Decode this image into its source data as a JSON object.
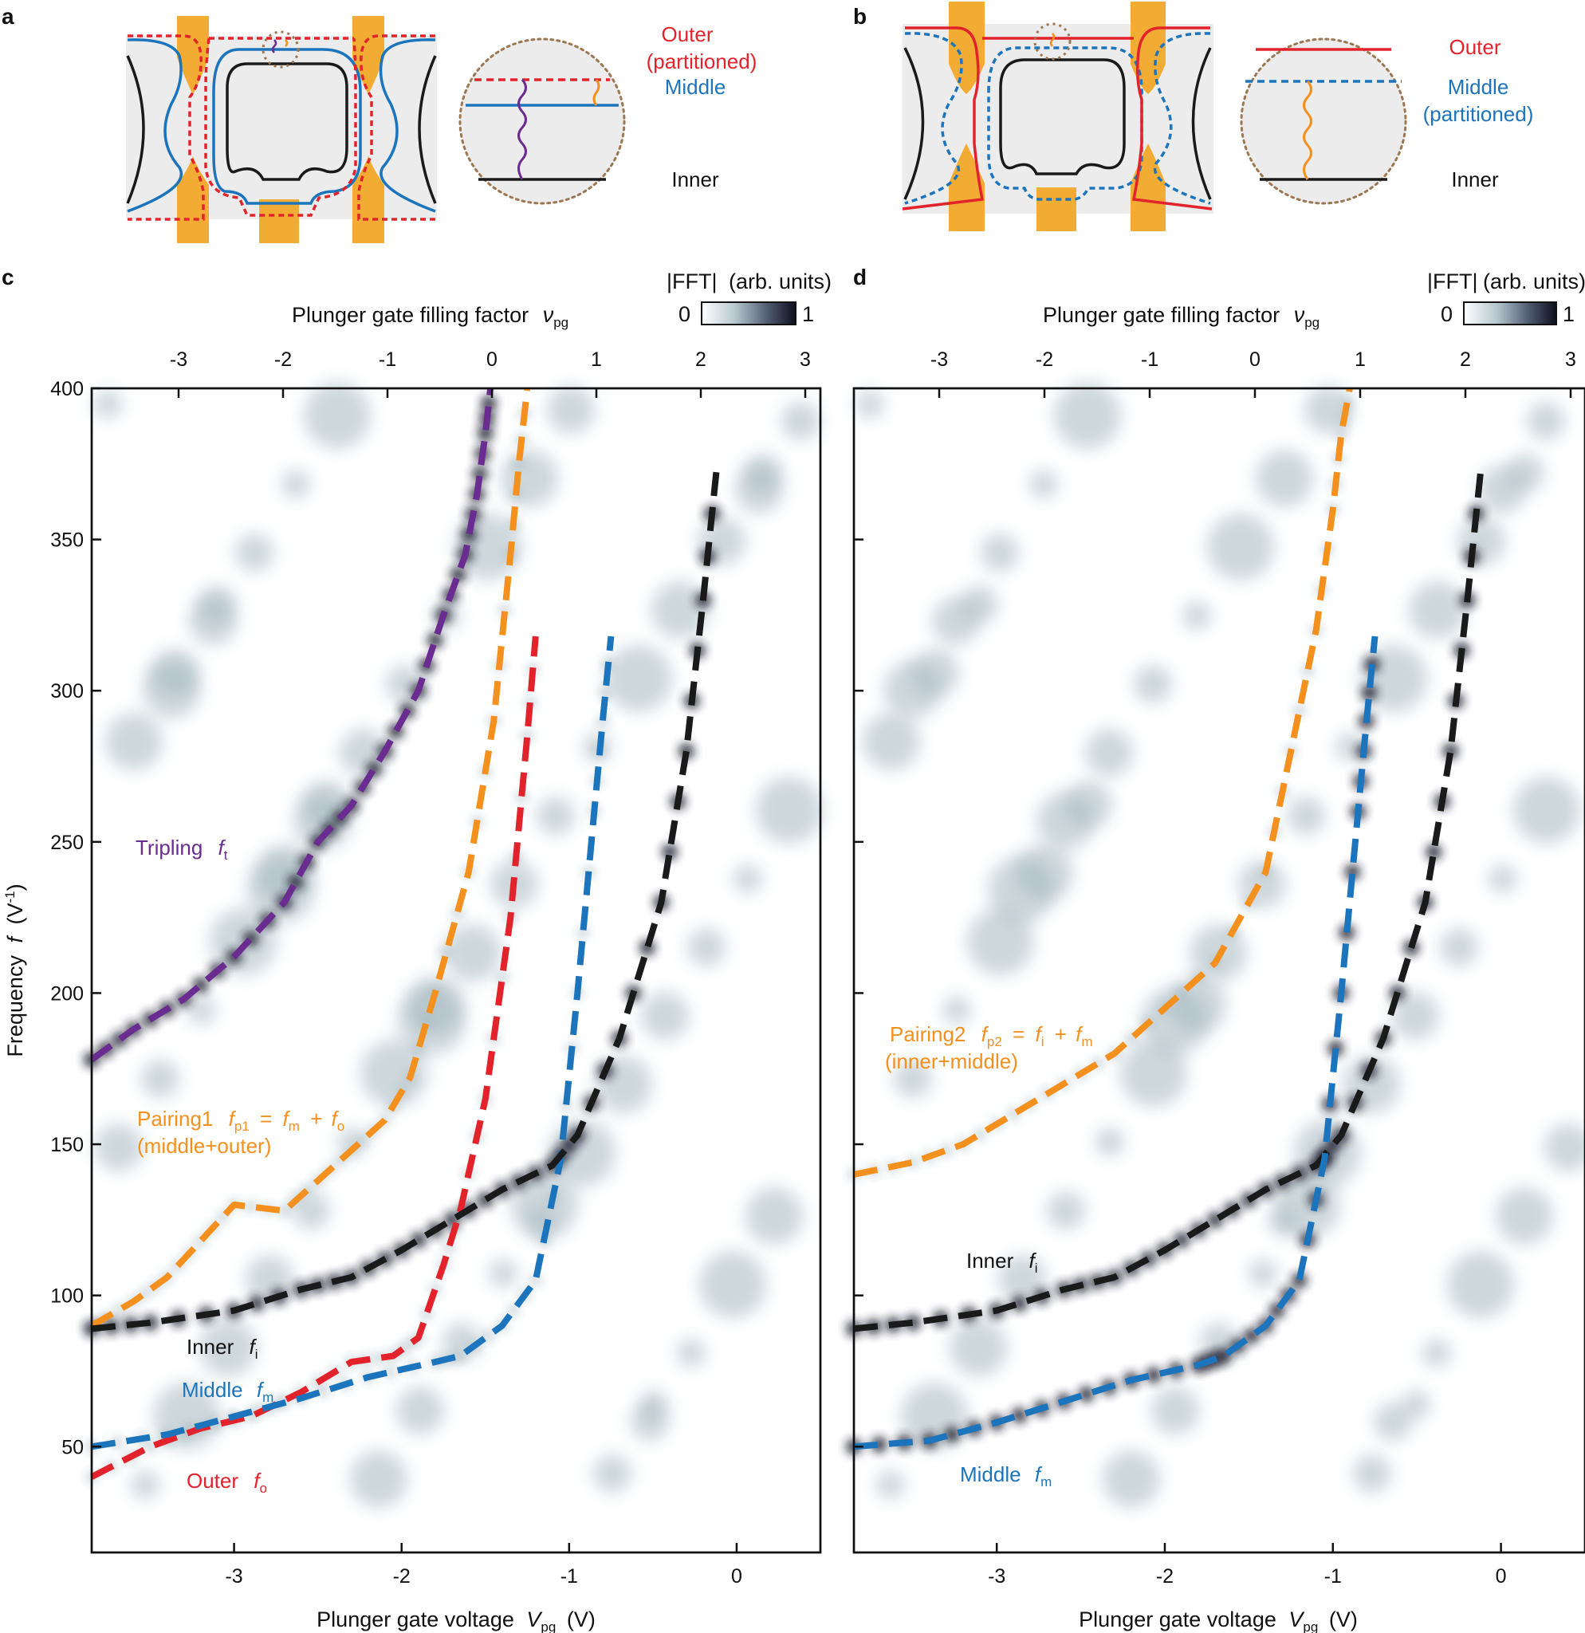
{
  "panels": {
    "a": {
      "label": "a",
      "loupe_labels": {
        "outer": "Outer",
        "outer_note": "(partitioned)",
        "middle": "Middle",
        "inner": "Inner"
      }
    },
    "b": {
      "label": "b",
      "loupe_labels": {
        "outer": "Outer",
        "middle": "Middle",
        "middle_note": "(partitioned)",
        "inner": "Inner"
      }
    },
    "c": {
      "label": "c"
    },
    "d": {
      "label": "d"
    }
  },
  "axes": {
    "x_bottom_label": "Plunger gate voltage",
    "x_bottom_symbol": "V",
    "x_bottom_sub": "pg",
    "x_bottom_unit": "(V)",
    "x_bottom_range": [
      -3.85,
      0.5
    ],
    "x_bottom_ticks": [
      "-3",
      "-2",
      "-1",
      "0"
    ],
    "x_top_label": "Plunger gate filling factor",
    "x_top_symbol": "ν",
    "x_top_sub": "pg",
    "x_top_ticks": [
      "-3",
      "-2",
      "-1",
      "0",
      "1",
      "2",
      "3"
    ],
    "y_label": "Frequency",
    "y_symbol": "f",
    "y_unit_open": "(V",
    "y_unit_exp": "-1",
    "y_unit_close": ")",
    "y_range": [
      15,
      400
    ],
    "y_ticks": [
      "50",
      "100",
      "150",
      "200",
      "250",
      "300",
      "350",
      "400"
    ]
  },
  "colorbar": {
    "label_abs": "|FFT|",
    "label_units": "(arb. units)",
    "min_label": "0",
    "max_label": "1",
    "color_low": "#ffffff",
    "color_high": "#0d0e1c"
  },
  "colors": {
    "outer": "#e3232c",
    "middle": "#1c75bc",
    "inner": "#1a1a1a",
    "pairing": "#f4901e",
    "tripling": "#6a2c91"
  },
  "annotations_c": {
    "tripling_label": "Tripling",
    "tripling_sym": "f",
    "tripling_sub": "t",
    "pairing_label": "Pairing1",
    "pairing_sym": "f",
    "pairing_sub": "p1",
    "pairing_eq": "=",
    "pairing_a": "f",
    "pairing_a_sub": "m",
    "pairing_plus": "+",
    "pairing_b": "f",
    "pairing_b_sub": "o",
    "pairing_desc": "(middle+outer)",
    "inner_label": "Inner",
    "inner_sym": "f",
    "inner_sub": "i",
    "middle_label": "Middle",
    "middle_sym": "f",
    "middle_sub": "m",
    "outer_label": "Outer",
    "outer_sym": "f",
    "outer_sub": "o"
  },
  "annotations_d": {
    "pairing_label": "Pairing2",
    "pairing_sym": "f",
    "pairing_sub": "p2",
    "pairing_eq": "=",
    "pairing_a": "f",
    "pairing_a_sub": "i",
    "pairing_plus": "+",
    "pairing_b": "f",
    "pairing_b_sub": "m",
    "pairing_desc": "(inner+middle)",
    "inner_label": "Inner",
    "inner_sym": "f",
    "inner_sub": "i",
    "middle_label": "Middle",
    "middle_sym": "f",
    "middle_sub": "m"
  },
  "chart_data": [
    {
      "panel": "c",
      "type": "heatmap",
      "title": "",
      "xlabel": "Plunger gate voltage V_pg (V)",
      "ylabel": "Frequency f (V^-1)",
      "xlim": [
        -3.85,
        0.5
      ],
      "ylim": [
        15,
        400
      ],
      "series": [
        {
          "name": "Tripling f_t",
          "color": "#6a2c91",
          "x": [
            -3.85,
            -3.6,
            -3.3,
            -3.0,
            -2.7,
            -2.5,
            -2.3,
            -2.1,
            -1.9,
            -1.75,
            -1.62,
            -1.55,
            -1.5,
            -1.47
          ],
          "y": [
            178,
            188,
            198,
            212,
            230,
            250,
            262,
            280,
            300,
            325,
            345,
            365,
            385,
            400
          ]
        },
        {
          "name": "Pairing1 f_p1",
          "color": "#f4901e",
          "x": [
            -3.85,
            -3.6,
            -3.4,
            -3.2,
            -3.0,
            -2.7,
            -2.5,
            -2.3,
            -2.1,
            -1.95,
            -1.8,
            -1.6,
            -1.45,
            -1.35,
            -1.3,
            -1.25
          ],
          "y": [
            90,
            98,
            106,
            118,
            130,
            128,
            138,
            148,
            158,
            172,
            200,
            240,
            290,
            345,
            375,
            400
          ]
        },
        {
          "name": "Outer f_o",
          "color": "#e3232c",
          "x": [
            -3.85,
            -3.5,
            -3.2,
            -2.9,
            -2.6,
            -2.3,
            -2.05,
            -1.9,
            -1.75,
            -1.65,
            -1.5,
            -1.35,
            -1.25,
            -1.2
          ],
          "y": [
            40,
            50,
            56,
            60,
            68,
            78,
            80,
            86,
            110,
            128,
            165,
            225,
            285,
            318
          ]
        },
        {
          "name": "Middle f_m",
          "color": "#1c75bc",
          "x": [
            -3.85,
            -3.4,
            -3.0,
            -2.6,
            -2.2,
            -1.8,
            -1.65,
            -1.4,
            -1.2,
            -1.05,
            -0.95,
            -0.85,
            -0.8,
            -0.75
          ],
          "y": [
            50,
            54,
            60,
            66,
            73,
            78,
            80,
            90,
            105,
            145,
            200,
            260,
            290,
            318
          ]
        },
        {
          "name": "Inner f_i",
          "color": "#1a1a1a",
          "x": [
            -3.85,
            -3.5,
            -3.0,
            -2.6,
            -2.3,
            -2.0,
            -1.7,
            -1.4,
            -1.1,
            -0.95,
            -0.7,
            -0.45,
            -0.3,
            -0.2,
            -0.12
          ],
          "y": [
            89,
            91,
            95,
            102,
            106,
            115,
            125,
            135,
            143,
            153,
            185,
            230,
            280,
            330,
            373
          ]
        }
      ]
    },
    {
      "panel": "d",
      "type": "heatmap",
      "title": "",
      "xlabel": "Plunger gate voltage V_pg (V)",
      "ylabel": "Frequency f (V^-1)",
      "xlim": [
        -3.85,
        0.5
      ],
      "ylim": [
        15,
        400
      ],
      "series": [
        {
          "name": "Pairing2 f_p2",
          "color": "#f4901e",
          "x": [
            -3.85,
            -3.5,
            -3.2,
            -2.9,
            -2.6,
            -2.3,
            -2.0,
            -1.7,
            -1.4,
            -1.25,
            -1.1,
            -1.0,
            -0.95,
            -0.9
          ],
          "y": [
            140,
            144,
            150,
            160,
            170,
            180,
            195,
            210,
            240,
            280,
            320,
            360,
            385,
            400
          ]
        },
        {
          "name": "Inner f_i",
          "color": "#1a1a1a",
          "x": [
            -3.85,
            -3.5,
            -3.0,
            -2.6,
            -2.3,
            -2.0,
            -1.7,
            -1.4,
            -1.1,
            -0.95,
            -0.7,
            -0.45,
            -0.3,
            -0.2,
            -0.12
          ],
          "y": [
            89,
            91,
            95,
            102,
            106,
            115,
            125,
            135,
            143,
            153,
            185,
            230,
            280,
            330,
            373
          ]
        },
        {
          "name": "Middle f_m",
          "color": "#1c75bc",
          "x": [
            -3.85,
            -3.4,
            -3.0,
            -2.6,
            -2.2,
            -1.8,
            -1.65,
            -1.4,
            -1.2,
            -1.05,
            -0.95,
            -0.85,
            -0.8,
            -0.75
          ],
          "y": [
            50,
            52,
            58,
            65,
            72,
            77,
            80,
            90,
            105,
            145,
            200,
            260,
            290,
            318
          ]
        }
      ]
    }
  ]
}
